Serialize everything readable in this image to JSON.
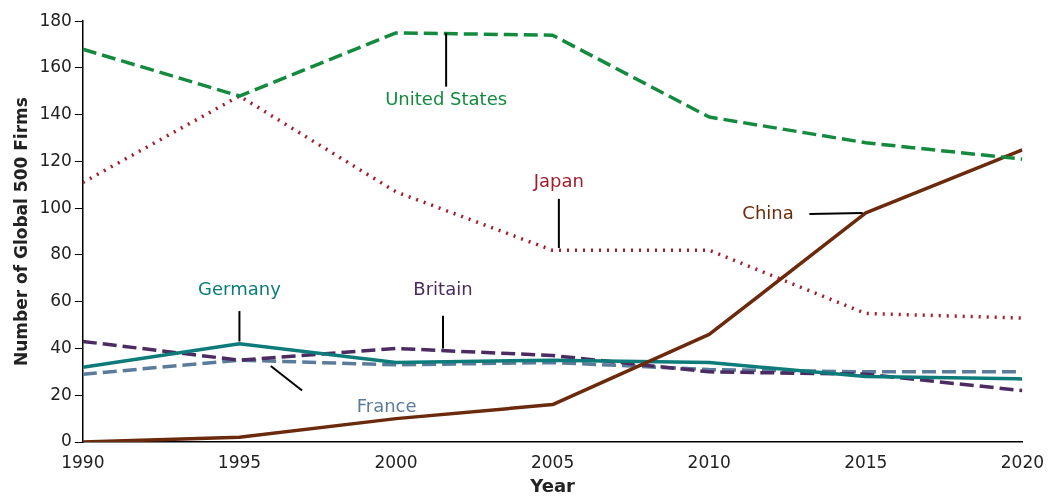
{
  "chart_data": {
    "type": "line",
    "xlabel": "Year",
    "ylabel": "Number of Global 500 Firms",
    "x": [
      1990,
      1995,
      2000,
      2005,
      2010,
      2015,
      2020
    ],
    "xlim": [
      1990,
      2020
    ],
    "xticks": [
      1990,
      1995,
      2000,
      2005,
      2010,
      2015,
      2020
    ],
    "ylim": [
      0,
      180
    ],
    "yticks": [
      0,
      20,
      40,
      60,
      80,
      100,
      120,
      140,
      160,
      180
    ],
    "grid": false,
    "legend": false,
    "marker": "none",
    "series": [
      {
        "name": "United States",
        "color": "#138a3e",
        "line_style": "dashed",
        "values": [
          168,
          148,
          175,
          174,
          139,
          128,
          121
        ]
      },
      {
        "name": "Japan",
        "color": "#a11d2b",
        "line_style": "dotted",
        "values": [
          111,
          148,
          107,
          82,
          82,
          55,
          53
        ]
      },
      {
        "name": "China",
        "color": "#6b2a0c",
        "line_style": "solid",
        "values": [
          0,
          2,
          10,
          16,
          46,
          98,
          125
        ]
      },
      {
        "name": "Germany",
        "color": "#0e7b7b",
        "line_style": "solid",
        "values": [
          32,
          42,
          34,
          35,
          34,
          28,
          27
        ]
      },
      {
        "name": "Britain",
        "color": "#4b2b62",
        "line_style": "dashed",
        "values": [
          43,
          35,
          40,
          37,
          30,
          29,
          22
        ]
      },
      {
        "name": "France",
        "color": "#5b7b9b",
        "line_style": "dashed",
        "values": [
          29,
          35,
          33,
          34,
          31,
          30,
          30
        ]
      }
    ]
  }
}
